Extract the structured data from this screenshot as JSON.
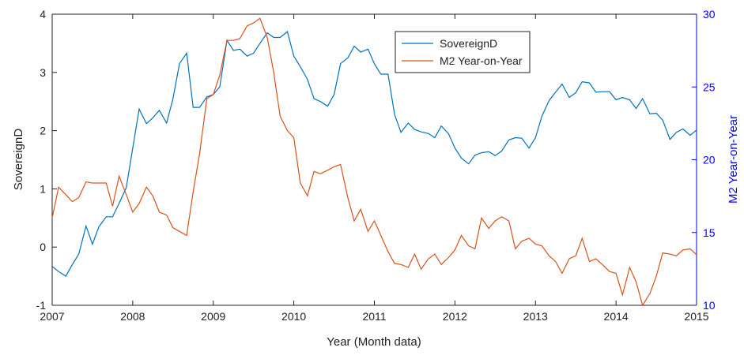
{
  "chart_data": {
    "type": "line",
    "xlabel": "Year (Month data)",
    "ylabel": "SovereignD",
    "y2label": "M2 Year-on-Year",
    "x": [
      2007,
      2007.08,
      2007.17,
      2007.25,
      2007.33,
      2007.42,
      2007.5,
      2007.58,
      2007.67,
      2007.75,
      2007.83,
      2007.92,
      2008,
      2008.08,
      2008.17,
      2008.25,
      2008.33,
      2008.42,
      2008.5,
      2008.58,
      2008.67,
      2008.75,
      2008.83,
      2008.92,
      2009,
      2009.08,
      2009.17,
      2009.25,
      2009.33,
      2009.42,
      2009.5,
      2009.58,
      2009.67,
      2009.75,
      2009.83,
      2009.92,
      2010,
      2010.08,
      2010.17,
      2010.25,
      2010.33,
      2010.42,
      2010.5,
      2010.58,
      2010.67,
      2010.75,
      2010.83,
      2010.92,
      2011,
      2011.08,
      2011.17,
      2011.25,
      2011.33,
      2011.42,
      2011.5,
      2011.58,
      2011.67,
      2011.75,
      2011.83,
      2011.92,
      2012,
      2012.08,
      2012.17,
      2012.25,
      2012.33,
      2012.42,
      2012.5,
      2012.58,
      2012.67,
      2012.75,
      2012.83,
      2012.92,
      2013,
      2013.08,
      2013.17,
      2013.25,
      2013.33,
      2013.42,
      2013.5,
      2013.58,
      2013.67,
      2013.75,
      2013.83,
      2013.92,
      2014,
      2014.08,
      2014.17,
      2014.25,
      2014.33,
      2014.42,
      2014.5,
      2014.58,
      2014.67,
      2014.75,
      2014.83,
      2014.92,
      2015
    ],
    "series": [
      {
        "name": "SovereignD",
        "color": "#0072bd",
        "values": [
          -0.33,
          -0.42,
          -0.5,
          -0.3,
          -0.12,
          0.36,
          0.05,
          0.35,
          0.52,
          0.52,
          0.75,
          1.02,
          1.7,
          2.37,
          2.12,
          2.22,
          2.35,
          2.13,
          2.55,
          3.15,
          3.33,
          2.4,
          2.4,
          2.58,
          2.62,
          2.75,
          3.55,
          3.38,
          3.4,
          3.28,
          3.33,
          3.5,
          3.68,
          3.6,
          3.6,
          3.7,
          3.28,
          3.1,
          2.88,
          2.55,
          2.5,
          2.42,
          2.62,
          3.15,
          3.25,
          3.45,
          3.35,
          3.4,
          3.15,
          2.97,
          2.97,
          2.28,
          1.97,
          2.13,
          2.02,
          1.98,
          1.95,
          1.88,
          2.08,
          1.95,
          1.7,
          1.53,
          1.43,
          1.58,
          1.62,
          1.64,
          1.57,
          1.65,
          1.84,
          1.88,
          1.87,
          1.7,
          1.88,
          2.25,
          2.52,
          2.66,
          2.8,
          2.57,
          2.65,
          2.84,
          2.82,
          2.66,
          2.67,
          2.67,
          2.53,
          2.57,
          2.53,
          2.38,
          2.55,
          2.29,
          2.3,
          2.18,
          1.85,
          1.97,
          2.03,
          1.92,
          2.01
        ]
      },
      {
        "name": "M2 Year-on-Year",
        "color": "#d95319",
        "axis": "y2",
        "values": [
          16,
          18.12,
          17.6,
          17.12,
          17.4,
          18.48,
          18.4,
          18.4,
          18.4,
          16.8,
          18.88,
          17.6,
          16.4,
          17,
          18.12,
          17.52,
          16.4,
          16.2,
          15.32,
          15.08,
          14.8,
          17.8,
          20.4,
          24.2,
          24.48,
          25.8,
          28.2,
          28.2,
          28.32,
          29.2,
          29.4,
          29.72,
          28.4,
          26,
          23,
          22,
          21.52,
          18.4,
          17.52,
          19.2,
          19.04,
          19.28,
          19.52,
          19.68,
          17.4,
          15.8,
          16.6,
          15.08,
          15.8,
          14.8,
          13.68,
          12.88,
          12.8,
          12.6,
          13.52,
          12.48,
          13.2,
          13.52,
          12.8,
          13.28,
          13.8,
          14.8,
          14.08,
          13.88,
          16,
          15.28,
          15.8,
          16.08,
          15.8,
          13.88,
          14.4,
          14.6,
          14.2,
          14.08,
          13.4,
          13,
          12.2,
          13.2,
          13.4,
          14.6,
          13,
          13.2,
          12.8,
          12.32,
          12.2,
          10.72,
          12.6,
          11.6,
          10,
          10.8,
          12,
          13.6,
          13.52,
          13.4,
          13.8,
          13.88,
          13.48
        ]
      }
    ],
    "xlim": [
      2007,
      2015
    ],
    "xticks": [
      2007,
      2008,
      2009,
      2010,
      2011,
      2012,
      2013,
      2014,
      2015
    ],
    "ylim": [
      -1,
      4
    ],
    "yticks": [
      -1,
      0,
      1,
      2,
      3,
      4
    ],
    "y2lim": [
      10,
      30
    ],
    "y2ticks": [
      10,
      15,
      20,
      25,
      30
    ],
    "y2color": "#0000ff",
    "legend": "top"
  }
}
